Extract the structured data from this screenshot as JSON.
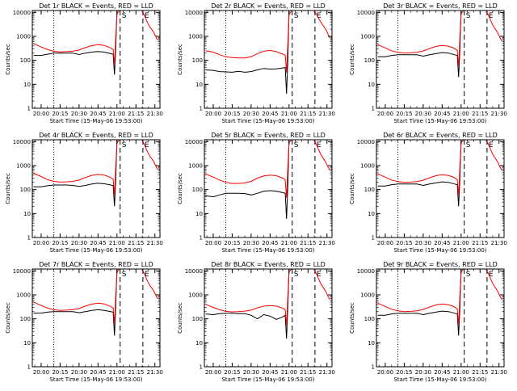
{
  "page": {
    "background": "#ffffff"
  },
  "colors": {
    "events": "#000000",
    "lld": "#ff0000",
    "axes": "#000000"
  },
  "shared": {
    "xlabel": "Start Time (15-May-06 19:53:00)",
    "ylabel": "Counts/sec",
    "x_tick_labels": [
      "20:00",
      "20:15",
      "20:30",
      "20:45",
      "21:00",
      "21:15",
      "21:30"
    ],
    "x_tick_minutes": [
      0,
      15,
      30,
      45,
      60,
      75,
      90
    ],
    "y_tick_labels": [
      "1",
      "10",
      "100",
      "1000",
      "10000"
    ],
    "y_tick_values": [
      1,
      10,
      100,
      1000,
      10000
    ],
    "xlim_minutes": [
      -7,
      94
    ],
    "ylim": [
      1,
      12000
    ],
    "y_scale": "log",
    "x_axis_zero": "20:00",
    "markers": [
      {
        "label": "S",
        "minute": 62.5,
        "style": "dashed"
      },
      {
        "label": "E",
        "minute": 80.5,
        "style": "dashed"
      }
    ],
    "dotted_line_minute": 10
  },
  "chart_data": [
    {
      "type": "line",
      "title": "Det 1r BLACK = Events, RED = LLD",
      "x": [
        -6,
        0,
        5,
        10,
        15,
        20,
        25,
        30,
        35,
        40,
        45,
        50,
        55,
        57,
        58,
        59,
        60,
        62,
        65,
        70,
        75,
        80,
        85,
        89,
        92
      ],
      "series": [
        {
          "name": "BLACK = Events",
          "y": [
            160,
            160,
            180,
            200,
            200,
            200,
            200,
            175,
            200,
            220,
            235,
            220,
            190,
            180,
            25,
            300,
            12000,
            12000,
            12000,
            12000,
            12000,
            12000,
            12000,
            12000,
            12000
          ]
        },
        {
          "name": "RED = LLD",
          "y": [
            500,
            360,
            280,
            240,
            225,
            230,
            240,
            270,
            340,
            410,
            450,
            420,
            330,
            280,
            60,
            800,
            9000,
            12000,
            12000,
            12000,
            12000,
            12000,
            3000,
            1500,
            700
          ]
        }
      ]
    },
    {
      "type": "line",
      "title": "Det 2r BLACK = Events, RED = LLD",
      "x": [
        -6,
        0,
        5,
        10,
        15,
        20,
        25,
        30,
        35,
        40,
        45,
        50,
        55,
        57,
        58,
        59,
        60,
        62,
        65,
        70,
        75,
        80,
        85,
        89,
        92
      ],
      "series": [
        {
          "name": "BLACK = Events",
          "y": [
            40,
            38,
            34,
            33,
            32,
            35,
            32,
            34,
            40,
            46,
            43,
            44,
            48,
            50,
            4,
            80,
            12000,
            12000,
            12000,
            12000,
            12000,
            12000,
            12000,
            12000,
            12000
          ]
        },
        {
          "name": "RED = LLD",
          "y": [
            250,
            220,
            170,
            140,
            130,
            125,
            125,
            140,
            190,
            240,
            260,
            230,
            180,
            160,
            30,
            400,
            8000,
            12000,
            12000,
            12000,
            12000,
            12000,
            4000,
            2000,
            900
          ]
        }
      ]
    },
    {
      "type": "line",
      "title": "Det 3r BLACK = Events, RED = LLD",
      "x": [
        -6,
        0,
        5,
        10,
        15,
        20,
        25,
        30,
        35,
        40,
        45,
        50,
        55,
        57,
        58,
        59,
        60,
        62,
        65,
        70,
        75,
        80,
        85,
        89,
        92
      ],
      "series": [
        {
          "name": "BLACK = Events",
          "y": [
            140,
            140,
            160,
            170,
            170,
            170,
            170,
            150,
            170,
            190,
            210,
            200,
            170,
            160,
            20,
            250,
            12000,
            12000,
            12000,
            12000,
            12000,
            12000,
            12000,
            12000,
            12000
          ]
        },
        {
          "name": "RED = LLD",
          "y": [
            450,
            330,
            250,
            215,
            200,
            205,
            215,
            245,
            310,
            380,
            420,
            390,
            310,
            260,
            55,
            750,
            9000,
            12000,
            12000,
            12000,
            12000,
            12000,
            3000,
            1400,
            650
          ]
        }
      ]
    },
    {
      "type": "line",
      "title": "Det 4r BLACK = Events, RED = LLD",
      "x": [
        -6,
        0,
        5,
        10,
        15,
        20,
        25,
        30,
        35,
        40,
        45,
        50,
        55,
        57,
        58,
        59,
        60,
        62,
        65,
        70,
        75,
        80,
        85,
        89,
        92
      ],
      "series": [
        {
          "name": "BLACK = Events",
          "y": [
            130,
            130,
            145,
            155,
            155,
            155,
            150,
            135,
            150,
            170,
            185,
            175,
            155,
            150,
            20,
            240,
            12000,
            12000,
            12000,
            12000,
            12000,
            12000,
            12000,
            12000,
            12000
          ]
        },
        {
          "name": "RED = LLD",
          "y": [
            480,
            350,
            260,
            220,
            205,
            210,
            220,
            250,
            320,
            390,
            430,
            400,
            320,
            270,
            55,
            780,
            9000,
            12000,
            12000,
            12000,
            12000,
            12000,
            3000,
            1500,
            700
          ]
        }
      ]
    },
    {
      "type": "line",
      "title": "Det 5r BLACK = Events, RED = LLD",
      "x": [
        -6,
        0,
        5,
        10,
        15,
        20,
        25,
        30,
        35,
        40,
        45,
        50,
        55,
        57,
        58,
        59,
        60,
        62,
        65,
        70,
        75,
        80,
        85,
        89,
        92
      ],
      "series": [
        {
          "name": "BLACK = Events",
          "y": [
            55,
            50,
            60,
            70,
            70,
            70,
            68,
            60,
            70,
            85,
            90,
            85,
            75,
            70,
            6,
            120,
            12000,
            12000,
            12000,
            12000,
            12000,
            12000,
            12000,
            12000,
            12000
          ]
        },
        {
          "name": "RED = LLD",
          "y": [
            450,
            330,
            250,
            200,
            180,
            180,
            190,
            220,
            300,
            370,
            400,
            380,
            300,
            250,
            45,
            700,
            9000,
            12000,
            12000,
            12000,
            12000,
            12000,
            3000,
            1400,
            650
          ]
        }
      ]
    },
    {
      "type": "line",
      "title": "Det 6r BLACK = Events, RED = LLD",
      "x": [
        -6,
        0,
        5,
        10,
        15,
        20,
        25,
        30,
        35,
        40,
        45,
        50,
        55,
        57,
        58,
        59,
        60,
        62,
        65,
        70,
        75,
        80,
        85,
        89,
        92
      ],
      "series": [
        {
          "name": "BLACK = Events",
          "y": [
            140,
            140,
            160,
            170,
            170,
            170,
            170,
            150,
            170,
            190,
            210,
            200,
            170,
            160,
            20,
            250,
            12000,
            12000,
            12000,
            12000,
            12000,
            12000,
            12000,
            12000,
            12000
          ]
        },
        {
          "name": "RED = LLD",
          "y": [
            450,
            330,
            250,
            215,
            200,
            205,
            215,
            245,
            310,
            380,
            420,
            390,
            310,
            260,
            55,
            750,
            9000,
            12000,
            12000,
            12000,
            12000,
            12000,
            3000,
            1400,
            650
          ]
        }
      ]
    },
    {
      "type": "line",
      "title": "Det 7r BLACK = Events, RED = LLD",
      "x": [
        -6,
        0,
        5,
        10,
        15,
        20,
        25,
        30,
        35,
        40,
        45,
        50,
        55,
        57,
        58,
        59,
        60,
        62,
        65,
        70,
        75,
        80,
        85,
        89,
        92
      ],
      "series": [
        {
          "name": "BLACK = Events",
          "y": [
            170,
            175,
            190,
            200,
            200,
            200,
            200,
            180,
            200,
            225,
            240,
            225,
            200,
            190,
            20,
            300,
            12000,
            12000,
            12000,
            12000,
            12000,
            12000,
            12000,
            12000,
            12000
          ]
        },
        {
          "name": "RED = LLD",
          "y": [
            500,
            360,
            280,
            240,
            225,
            230,
            240,
            270,
            340,
            410,
            450,
            420,
            330,
            280,
            60,
            800,
            9000,
            12000,
            12000,
            12000,
            12000,
            12000,
            3000,
            1500,
            700
          ]
        }
      ]
    },
    {
      "type": "line",
      "title": "Det 8r BLACK = Events, RED = LLD",
      "x": [
        -6,
        0,
        5,
        10,
        15,
        20,
        25,
        30,
        35,
        40,
        45,
        50,
        55,
        57,
        58,
        59,
        60,
        62,
        65,
        70,
        75,
        80,
        85,
        89,
        92
      ],
      "series": [
        {
          "name": "BLACK = Events",
          "y": [
            160,
            150,
            165,
            170,
            170,
            165,
            165,
            140,
            100,
            150,
            130,
            95,
            120,
            140,
            15,
            250,
            12000,
            12000,
            12000,
            12000,
            12000,
            12000,
            12000,
            12000,
            12000
          ]
        },
        {
          "name": "RED = LLD",
          "y": [
            400,
            300,
            240,
            205,
            195,
            200,
            210,
            230,
            290,
            340,
            360,
            340,
            280,
            240,
            50,
            700,
            9000,
            12000,
            12000,
            12000,
            12000,
            12000,
            3000,
            1400,
            650
          ]
        }
      ]
    },
    {
      "type": "line",
      "title": "Det 9r BLACK = Events, RED = LLD",
      "x": [
        -6,
        0,
        5,
        10,
        15,
        20,
        25,
        30,
        35,
        40,
        45,
        50,
        55,
        57,
        58,
        59,
        60,
        62,
        65,
        70,
        75,
        80,
        85,
        89,
        92
      ],
      "series": [
        {
          "name": "BLACK = Events",
          "y": [
            140,
            140,
            160,
            170,
            170,
            170,
            170,
            150,
            170,
            190,
            210,
            200,
            170,
            160,
            20,
            250,
            12000,
            12000,
            12000,
            12000,
            12000,
            12000,
            12000,
            12000,
            12000
          ]
        },
        {
          "name": "RED = LLD",
          "y": [
            450,
            330,
            250,
            215,
            200,
            205,
            215,
            245,
            310,
            380,
            420,
            390,
            310,
            260,
            55,
            750,
            9000,
            12000,
            12000,
            12000,
            12000,
            12000,
            3000,
            1400,
            650
          ]
        }
      ]
    }
  ]
}
